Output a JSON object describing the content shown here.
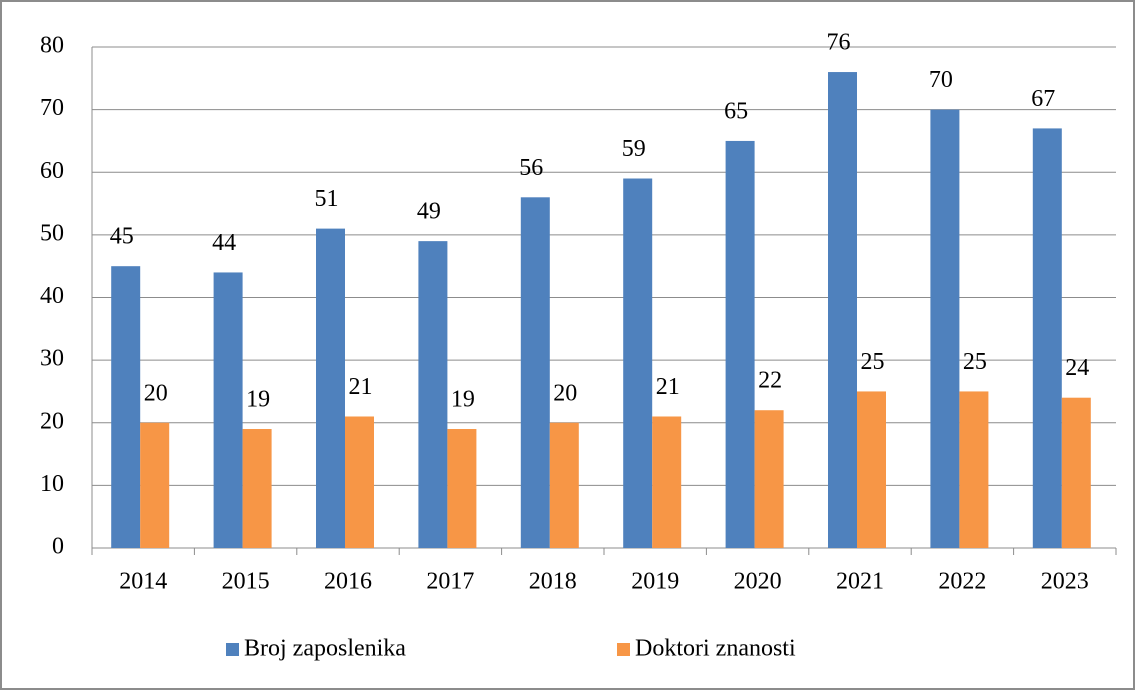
{
  "chart_data": {
    "type": "bar",
    "categories": [
      "2014",
      "2015",
      "2016",
      "2017",
      "2018",
      "2019",
      "2020",
      "2021",
      "2022",
      "2023"
    ],
    "series": [
      {
        "name": "Broj zaposlenika",
        "color": "#4f81bd",
        "values": [
          45,
          44,
          51,
          49,
          56,
          59,
          65,
          76,
          70,
          67
        ]
      },
      {
        "name": "Doktori znanosti",
        "color": "#f79646",
        "values": [
          20,
          19,
          21,
          19,
          20,
          21,
          22,
          25,
          25,
          24
        ]
      }
    ],
    "ylim": [
      0,
      80
    ],
    "yticks": [
      0,
      10,
      20,
      30,
      40,
      50,
      60,
      70,
      80
    ],
    "grid": true,
    "legend": "bottom"
  }
}
